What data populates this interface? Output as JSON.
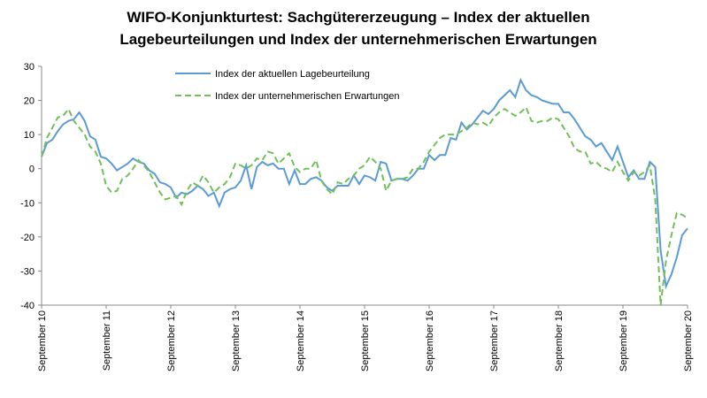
{
  "chart_data": {
    "type": "line",
    "title": [
      "WIFO-Konjunkturtest: Sachgütererzeugung – Index der aktuellen",
      "Lagebeurteilungen und Index der unternehmerischen Erwartungen"
    ],
    "categories": [
      "September 10",
      null,
      null,
      null,
      null,
      null,
      null,
      null,
      null,
      null,
      null,
      null,
      "September 11",
      null,
      null,
      null,
      null,
      null,
      null,
      null,
      null,
      null,
      null,
      null,
      "September 12",
      null,
      null,
      null,
      null,
      null,
      null,
      null,
      null,
      null,
      null,
      null,
      "September 13",
      null,
      null,
      null,
      null,
      null,
      null,
      null,
      null,
      null,
      null,
      null,
      "September 14",
      null,
      null,
      null,
      null,
      null,
      null,
      null,
      null,
      null,
      null,
      null,
      "September 15",
      null,
      null,
      null,
      null,
      null,
      null,
      null,
      null,
      null,
      null,
      null,
      "September 16",
      null,
      null,
      null,
      null,
      null,
      null,
      null,
      null,
      null,
      null,
      null,
      "September 17",
      null,
      null,
      null,
      null,
      null,
      null,
      null,
      null,
      null,
      null,
      null,
      "September 18",
      null,
      null,
      null,
      null,
      null,
      null,
      null,
      null,
      null,
      null,
      null,
      "September 19",
      null,
      null,
      null,
      null,
      null,
      null,
      null,
      null,
      null,
      null,
      null,
      "September 20"
    ],
    "series": [
      {
        "name": "Index der aktuellen Lagebeurteilung",
        "color": "#5b9bd5",
        "dashed": false,
        "values": [
          3.5,
          7.5,
          8.5,
          11,
          13,
          14,
          14.5,
          16.5,
          14,
          9.5,
          8.5,
          3.5,
          3,
          1.5,
          -0.5,
          0.5,
          1.5,
          3,
          2,
          1.5,
          -0.5,
          -1.5,
          -4,
          -4.5,
          -5.5,
          -8.5,
          -7,
          -7.5,
          -6.5,
          -5,
          -6,
          -8,
          -7,
          -11,
          -7,
          -6,
          -5.5,
          -3.5,
          1,
          -6,
          0.5,
          2,
          1,
          1.5,
          0,
          0,
          -4.5,
          -0.5,
          -4.5,
          -4.5,
          -3,
          -2.5,
          -3.5,
          -5.5,
          -6.5,
          -5,
          -5,
          -5,
          -2,
          -4.5,
          -2,
          -2.5,
          -3.5,
          2,
          1.5,
          -3.5,
          -3,
          -3,
          -3.5,
          -2,
          0,
          0,
          4,
          2.5,
          4,
          4,
          9,
          8.5,
          13.5,
          11.5,
          13,
          15,
          17,
          16,
          17.5,
          20,
          21.5,
          23,
          21,
          26,
          23,
          21.5,
          21,
          20,
          19.5,
          19,
          19,
          16.5,
          16.5,
          14.5,
          12,
          9.5,
          8.5,
          6.5,
          7.5,
          5,
          2.5,
          6.5,
          2,
          -2.5,
          -0.5,
          -3,
          -3,
          2,
          0.5,
          -24,
          -34.5,
          -31,
          -26,
          -19.5,
          -17.5
        ]
      },
      {
        "name": "Index der unternehmerischen Erwartungen",
        "color": "#70c05a",
        "dashed": true,
        "values": [
          3.5,
          9,
          12,
          15,
          15.5,
          17.5,
          14,
          12,
          10,
          6.5,
          5,
          1.5,
          -5,
          -7,
          -6.5,
          -3,
          -2,
          0,
          2.5,
          1,
          -1,
          -4,
          -7,
          -9,
          -8.5,
          -8,
          -10.5,
          -6.5,
          -4,
          -5,
          -2,
          -4,
          -7,
          -5.5,
          -4.5,
          -2.5,
          1.5,
          1,
          0,
          1,
          3,
          2.5,
          5,
          4.5,
          1.5,
          3,
          4.5,
          0.5,
          -1,
          0,
          0,
          2.5,
          -3.5,
          -6,
          -7.5,
          -4,
          -4.5,
          -3,
          -2,
          0,
          1,
          3.5,
          2,
          0,
          -6.5,
          -3.5,
          -3,
          -3,
          -2.5,
          0,
          0,
          2,
          5,
          7,
          9,
          10,
          10,
          10,
          11,
          12,
          13.5,
          13,
          13.5,
          12.5,
          15,
          16.5,
          17.5,
          16.5,
          15.5,
          16.5,
          18,
          14,
          13.5,
          14,
          14,
          15,
          14.5,
          12,
          9.5,
          6,
          5,
          5,
          1.5,
          2,
          0.5,
          0,
          -1,
          2,
          -1,
          -3.5,
          -1,
          -2,
          -1,
          1,
          -9,
          -40,
          -27,
          -19.5,
          -13,
          -13.5,
          -14.5
        ]
      }
    ],
    "ylim": [
      -40,
      30
    ],
    "yticks": [
      -40,
      -30,
      -20,
      -10,
      0,
      10,
      20,
      30
    ],
    "grid": false
  }
}
